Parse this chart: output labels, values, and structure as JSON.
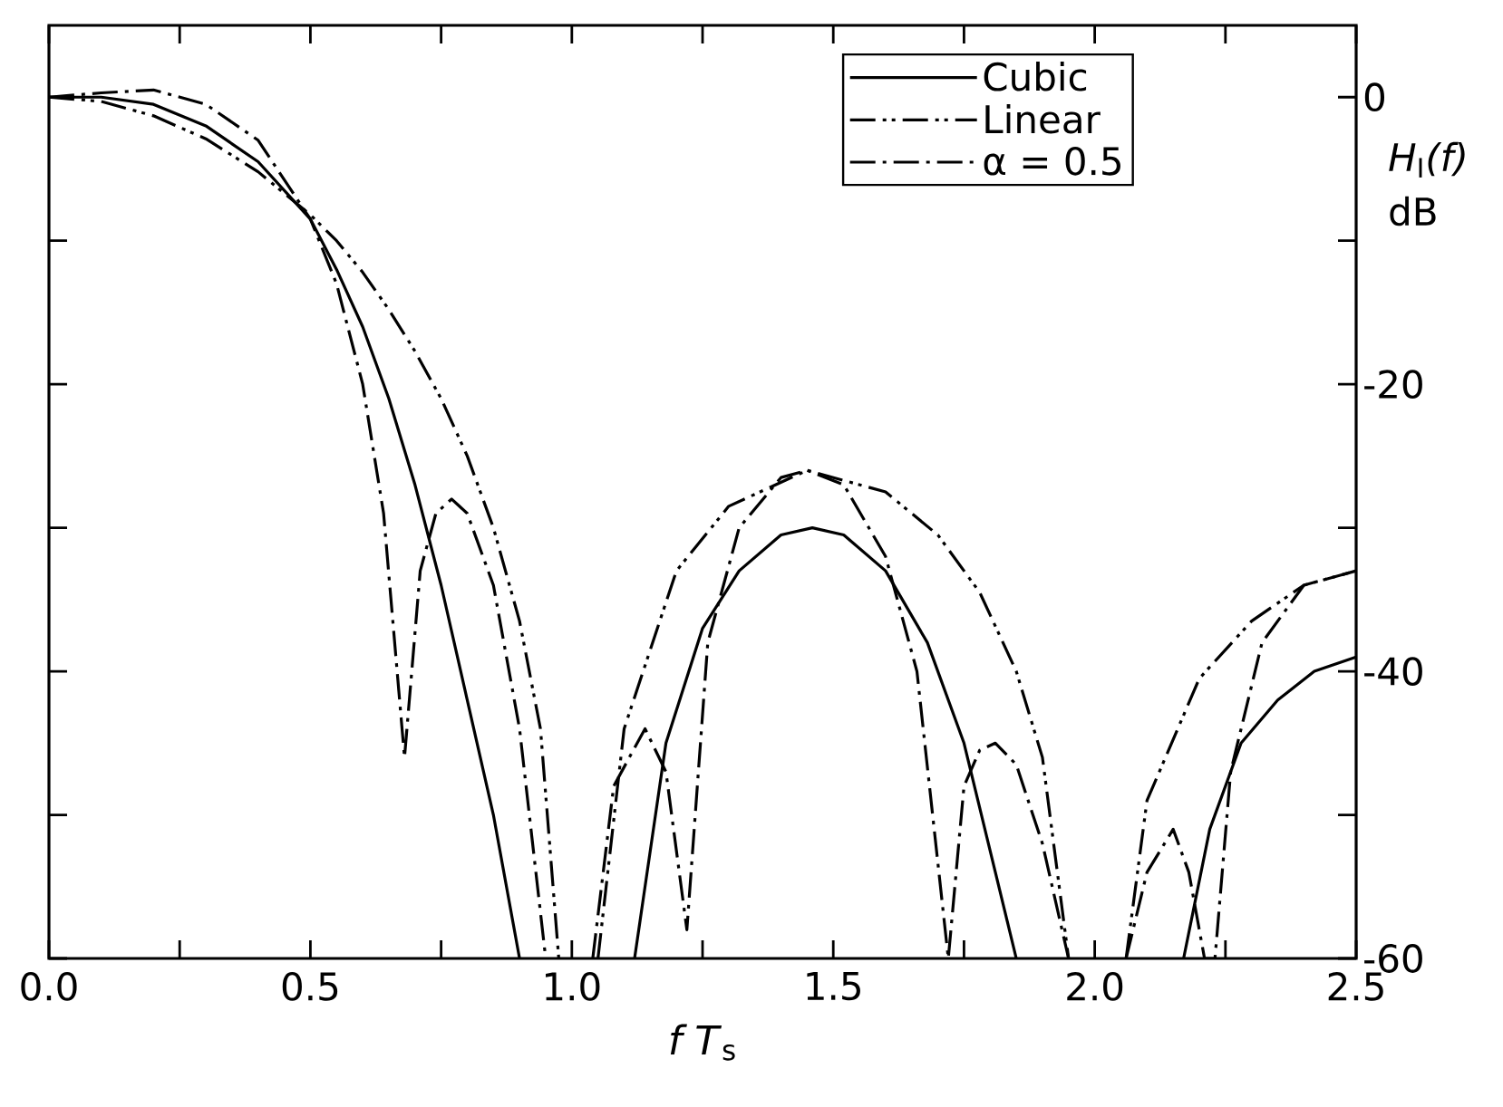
{
  "chart_data": {
    "type": "line",
    "xlabel": "*f  T*$_{s}$",
    "ylabel": "*H*$_{I}$*(f)* dB",
    "xlim": [
      0,
      2.5
    ],
    "ylim": [
      -60,
      5
    ],
    "xticks": [
      {
        "value": 0,
        "label": "0.0"
      },
      {
        "value": 0.25,
        "label": null
      },
      0.5,
      {
        "value": 0.75,
        "label": null
      },
      {
        "value": 1,
        "label": "1.0"
      },
      {
        "value": 1.25,
        "label": null
      },
      1.5,
      {
        "value": 1.75,
        "label": null
      },
      {
        "value": 2,
        "label": "2.0"
      },
      {
        "value": 2.25,
        "label": null
      },
      2.5
    ],
    "yticks": [
      0,
      {
        "value": -10,
        "label": null
      },
      -20,
      {
        "value": -30,
        "label": null
      },
      -40,
      {
        "value": -50,
        "label": null
      },
      -60
    ],
    "legend": "top right",
    "grid": false,
    "marker": "none",
    "series": [
      {
        "name": "Cubic",
        "color": "#000000",
        "line_style": "solid",
        "x": [
          0,
          0.1,
          0.2,
          0.3,
          0.4,
          0.5,
          0.55,
          0.6,
          0.65,
          0.7,
          0.75,
          0.8,
          0.85,
          0.9,
          null,
          1.12,
          1.18,
          1.25,
          1.32,
          1.4,
          1.46,
          1.52,
          1.6,
          1.68,
          1.75,
          1.81,
          1.85,
          null,
          2.17,
          2.22,
          2.28,
          2.35,
          2.42,
          2.5
        ],
        "values": [
          0,
          0,
          -0.5,
          -2,
          -4.5,
          -8.5,
          -12,
          -16,
          -21,
          -27,
          -34,
          -42,
          -50,
          -60,
          null,
          -60,
          -45,
          -37,
          -33,
          -30.5,
          -30,
          -30.5,
          -33,
          -38,
          -45,
          -54,
          -60,
          null,
          -60,
          -51,
          -45,
          -42,
          -40,
          -39
        ]
      },
      {
        "name": "Linear",
        "color": "#000000",
        "line_style": "dash dot dot",
        "x": [
          0,
          0.1,
          0.2,
          0.3,
          0.4,
          0.5,
          0.55,
          0.6,
          0.65,
          0.7,
          0.75,
          0.8,
          0.85,
          0.9,
          0.94,
          0.975,
          null,
          1.05,
          1.1,
          1.2,
          1.3,
          1.45,
          1.6,
          1.7,
          1.78,
          1.85,
          1.9,
          1.95,
          null,
          2.06,
          2.1,
          2.2,
          2.3,
          2.4,
          2.5
        ],
        "values": [
          0,
          -0.3,
          -1.3,
          -2.9,
          -5.2,
          -8.2,
          -10,
          -12.2,
          -14.8,
          -17.7,
          -21,
          -25,
          -30,
          -36.5,
          -44,
          -60,
          null,
          -60,
          -44,
          -33,
          -28.5,
          -26,
          -27.5,
          -30.5,
          -34.5,
          -40,
          -46,
          -60,
          null,
          -60,
          -49,
          -40.5,
          -36.5,
          -34,
          -33
        ]
      },
      {
        "name": "α = 0.5",
        "color": "#000000",
        "line_style": "dash dot",
        "x": [
          0,
          0.1,
          0.2,
          0.3,
          0.4,
          0.5,
          0.55,
          0.6,
          0.64,
          0.68,
          0.71,
          0.74,
          0.77,
          0.8,
          0.85,
          0.9,
          0.95,
          null,
          1.04,
          1.08,
          1.14,
          1.18,
          1.22,
          1.26,
          1.32,
          1.4,
          1.45,
          1.52,
          1.6,
          1.66,
          1.72,
          1.75,
          1.78,
          1.81,
          1.85,
          1.9,
          1.95,
          null,
          2.06,
          2.1,
          2.15,
          2.18,
          2.21,
          2.23,
          2.26,
          2.32,
          2.4,
          2.5
        ],
        "values": [
          0,
          0.3,
          0.5,
          -0.5,
          -3,
          -8.5,
          -13,
          -20,
          -29,
          -46,
          -33,
          -29,
          -28,
          -29,
          -34,
          -44,
          -60,
          null,
          -60,
          -48,
          -44,
          -47,
          -58,
          -38,
          -30,
          -26.5,
          -26,
          -27,
          -32,
          -40,
          -60,
          -48,
          -45.5,
          -45,
          -46.5,
          -52,
          -60,
          null,
          -60,
          -54,
          -51,
          -54,
          -60,
          -60,
          -47,
          -38,
          -34,
          -33
        ]
      }
    ]
  }
}
